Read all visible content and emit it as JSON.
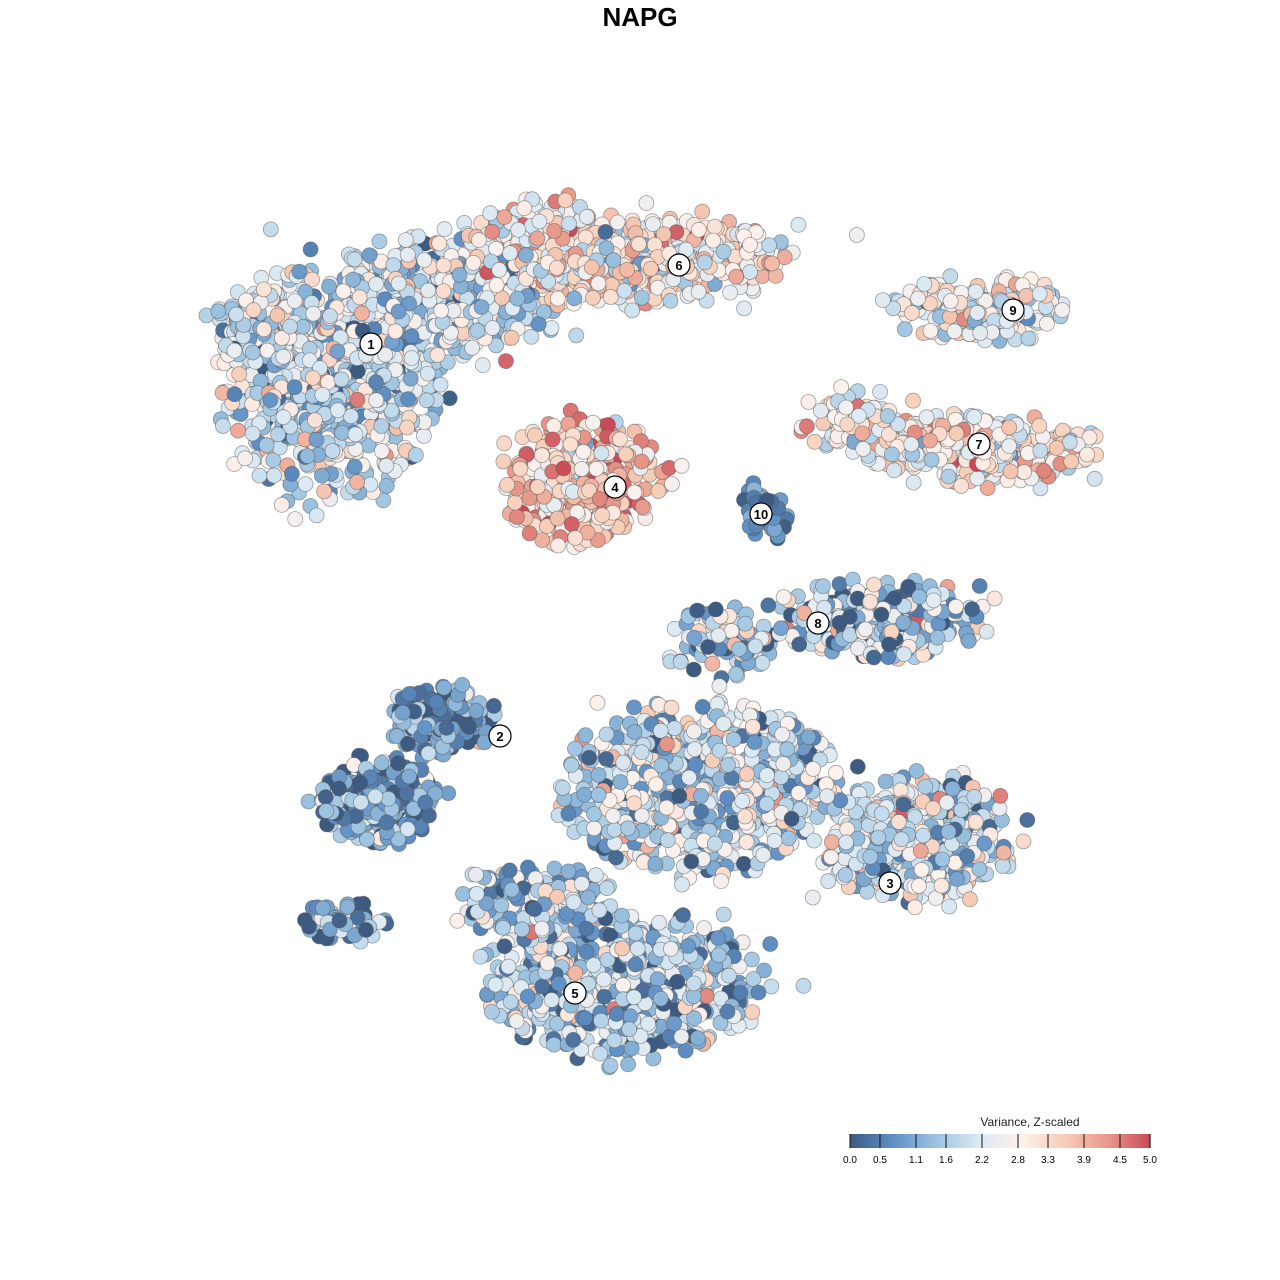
{
  "chart_data": {
    "type": "scatter",
    "title": "NAPG",
    "colorbar": {
      "title": "Variance, Z-scaled",
      "range": [
        0.0,
        5.0
      ],
      "ticks": [
        "0.0",
        "0.5",
        "1.1",
        "1.6",
        "2.2",
        "2.8",
        "3.3",
        "3.9",
        "4.5",
        "5.0"
      ],
      "colors": [
        "#3d5a80",
        "#5f8fc4",
        "#9cc3e0",
        "#dbe9f3",
        "#fdf1ec",
        "#f6cdb7",
        "#e9998a",
        "#c94a57"
      ]
    },
    "clusters": [
      {
        "label": "1",
        "mean": 2.0
      },
      {
        "label": "2",
        "mean": 0.8
      },
      {
        "label": "3",
        "mean": 2.0
      },
      {
        "label": "4",
        "mean": 3.5
      },
      {
        "label": "5",
        "mean": 1.6
      },
      {
        "label": "6",
        "mean": 2.9
      },
      {
        "label": "7",
        "mean": 2.8
      },
      {
        "label": "8",
        "mean": 1.7
      },
      {
        "label": "9",
        "mean": 2.5
      },
      {
        "label": "10",
        "mean": 0.6
      }
    ],
    "grid": false,
    "legend_position": "bottom-right"
  }
}
